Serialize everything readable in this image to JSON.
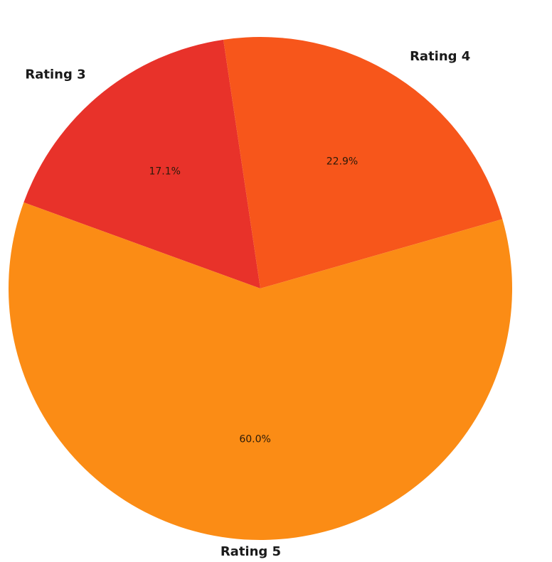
{
  "chart_data": {
    "type": "pie",
    "title": "",
    "slices": [
      {
        "label": "Rating 3",
        "value": 17.1,
        "value_label": "17.1%",
        "color": "#e8322a"
      },
      {
        "label": "Rating 4",
        "value": 22.9,
        "value_label": "22.9%",
        "color": "#f7561b"
      },
      {
        "label": "Rating 5",
        "value": 60.0,
        "value_label": "60.0%",
        "color": "#fb8c15"
      }
    ],
    "start_angle_deg": 160,
    "direction": "clockwise",
    "legend": "none"
  }
}
